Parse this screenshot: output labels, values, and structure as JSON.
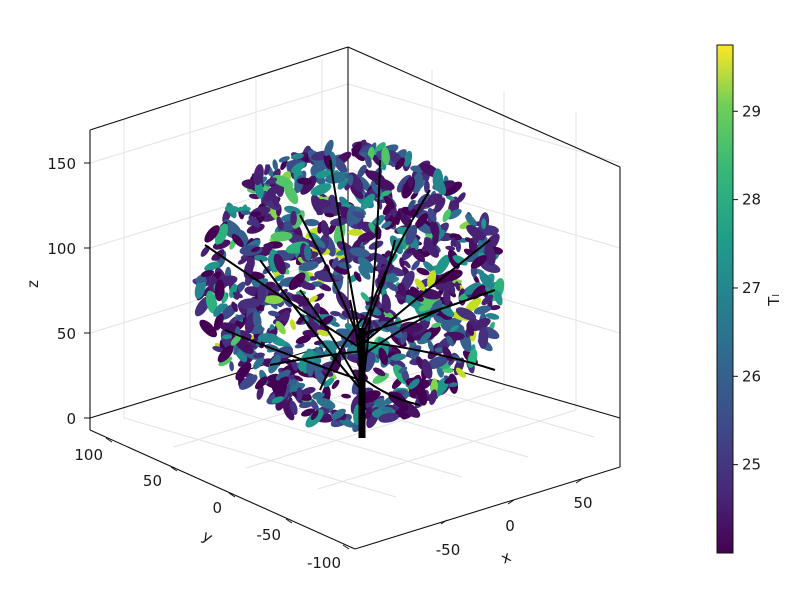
{
  "chart_data": {
    "type": "scatter3d",
    "description_type": "3D tree mesh colored by leaf temperature",
    "axes": {
      "x": {
        "label": "x",
        "ticks": [
          "-50",
          "0",
          "50"
        ],
        "range": [
          -90,
          90
        ]
      },
      "y": {
        "label": "y",
        "ticks": [
          "100",
          "50",
          "0",
          "-50",
          "-100"
        ],
        "range": [
          -110,
          110
        ]
      },
      "z": {
        "label": "z",
        "ticks": [
          "0",
          "50",
          "100",
          "150"
        ],
        "range": [
          -5,
          170
        ]
      }
    },
    "colorbar": {
      "label": "Tₗ",
      "colormap": "viridis",
      "range": [
        24.0,
        29.75
      ],
      "ticks": [
        "25",
        "26",
        "27",
        "28",
        "29"
      ],
      "tick_values": [
        25,
        26,
        27,
        28,
        29
      ]
    },
    "grid": true,
    "colors": {
      "trunk": "#000000",
      "viridis_low": "#440154",
      "viridis_mid": "#21918c",
      "viridis_high": "#fde725"
    }
  }
}
